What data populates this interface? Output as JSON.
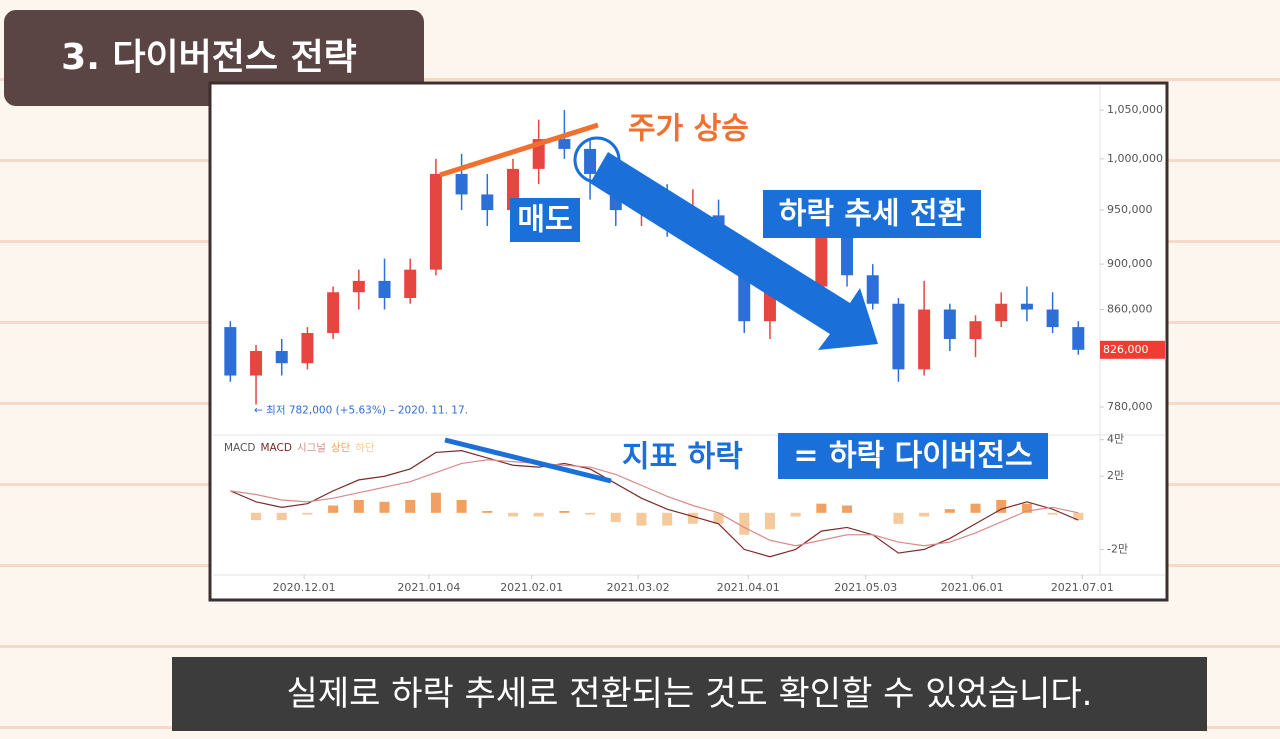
{
  "title": "3. 다이버전스 전략",
  "caption": "실제로 하락 추세로 전환되는 것도 확인할 수 있었습니다.",
  "annotations": [
    "주가 상승",
    "매도",
    "하락 추세 전환",
    "지표 하락",
    "= 하락 다이버전스"
  ],
  "chart_data": [
    {
      "type": "candlestick",
      "x": [
        "2020.11.09",
        "2020.11.16",
        "2020.11.23",
        "2020.11.30",
        "2020.12.07",
        "2020.12.14",
        "2020.12.21",
        "2020.12.28",
        "2021.01.04",
        "2021.01.11",
        "2021.01.18",
        "2021.01.25",
        "2021.02.01",
        "2021.02.08",
        "2021.02.15",
        "2021.02.22",
        "2021.03.01",
        "2021.03.08",
        "2021.03.15",
        "2021.03.22",
        "2021.03.29",
        "2021.04.05",
        "2021.04.12",
        "2021.04.19",
        "2021.04.26",
        "2021.05.03",
        "2021.05.10",
        "2021.05.17",
        "2021.05.24",
        "2021.05.31",
        "2021.06.07",
        "2021.06.14",
        "2021.06.21",
        "2021.06.28"
      ],
      "open": [
        845000,
        805000,
        825000,
        815000,
        840000,
        875000,
        885000,
        870000,
        895000,
        985000,
        965000,
        950000,
        990000,
        1020000,
        1010000,
        985000,
        950000,
        960000,
        940000,
        945000,
        915000,
        850000,
        875000,
        880000,
        930000,
        890000,
        865000,
        810000,
        860000,
        835000,
        850000,
        865000,
        860000,
        845000
      ],
      "high": [
        850000,
        830000,
        835000,
        845000,
        880000,
        895000,
        905000,
        905000,
        1000000,
        1005000,
        985000,
        1000000,
        1040000,
        1050000,
        1020000,
        995000,
        975000,
        975000,
        970000,
        960000,
        920000,
        885000,
        895000,
        945000,
        935000,
        900000,
        870000,
        885000,
        865000,
        855000,
        875000,
        880000,
        875000,
        850000
      ],
      "low": [
        800000,
        782000,
        805000,
        810000,
        835000,
        860000,
        860000,
        865000,
        890000,
        950000,
        935000,
        945000,
        975000,
        1000000,
        960000,
        935000,
        935000,
        925000,
        930000,
        905000,
        840000,
        835000,
        860000,
        875000,
        880000,
        860000,
        800000,
        805000,
        825000,
        820000,
        845000,
        850000,
        840000,
        822000
      ],
      "close": [
        805000,
        825000,
        815000,
        840000,
        875000,
        885000,
        870000,
        895000,
        985000,
        965000,
        950000,
        990000,
        1020000,
        1010000,
        985000,
        950000,
        960000,
        940000,
        945000,
        915000,
        850000,
        875000,
        880000,
        930000,
        890000,
        865000,
        810000,
        860000,
        835000,
        850000,
        865000,
        860000,
        845000,
        826000
      ],
      "up_color": "#e5463f",
      "down_color": "#2d6fd6",
      "xlim": [
        "2020.11.07",
        "2021.07.05"
      ],
      "xticks": [
        "2020.12.01",
        "2021.01.04",
        "2021.02.01",
        "2021.03.02",
        "2021.04.01",
        "2021.05.03",
        "2021.06.01",
        "2021.07.01"
      ],
      "ylim": [
        760000,
        1066000
      ],
      "log_scale": true,
      "yticks": [
        {
          "value": 780000,
          "label": "780,000"
        },
        {
          "value": 860000,
          "label": "860,000"
        },
        {
          "value": 900000,
          "label": "900,000"
        },
        {
          "value": 950000,
          "label": "950,000"
        },
        {
          "value": 1000000,
          "label": "1,000,000"
        },
        {
          "value": 1050000,
          "label": "1,050,000"
        }
      ],
      "low_note": "← 최저 782,000 (+5.63%) – 2020. 11. 17.",
      "price_marker": {
        "value": 826000,
        "label": "826,000",
        "color": "#f03c32"
      }
    },
    {
      "type": "macd",
      "legend_title": "MACD",
      "x": [
        "2020.11.09",
        "2020.11.16",
        "2020.11.23",
        "2020.11.30",
        "2020.12.07",
        "2020.12.14",
        "2020.12.21",
        "2020.12.28",
        "2021.01.04",
        "2021.01.11",
        "2021.01.18",
        "2021.01.25",
        "2021.02.01",
        "2021.02.08",
        "2021.02.15",
        "2021.02.22",
        "2021.03.01",
        "2021.03.08",
        "2021.03.15",
        "2021.03.22",
        "2021.03.29",
        "2021.04.05",
        "2021.04.12",
        "2021.04.19",
        "2021.04.26",
        "2021.05.03",
        "2021.05.10",
        "2021.05.17",
        "2021.05.24",
        "2021.05.31",
        "2021.06.07",
        "2021.06.14",
        "2021.06.21",
        "2021.06.28"
      ],
      "xlim": [
        "2020.11.07",
        "2021.07.05"
      ],
      "ylim": [
        -34000,
        42000
      ],
      "yticks": [
        {
          "value": 40000,
          "label": "4만"
        },
        {
          "value": 20000,
          "label": "2만"
        },
        {
          "value": -20000,
          "label": "-2만"
        }
      ],
      "series": [
        {
          "name": "MACD",
          "kind": "line",
          "color": "#7a2a2a",
          "values": [
            12000,
            6000,
            3000,
            5000,
            12000,
            18000,
            20000,
            24000,
            33000,
            34000,
            30000,
            26000,
            25000,
            27000,
            24000,
            16000,
            8000,
            2000,
            -2000,
            -6000,
            -20000,
            -24000,
            -20000,
            -10000,
            -8000,
            -12000,
            -22000,
            -20000,
            -14000,
            -6000,
            2000,
            6000,
            2000,
            -4000
          ]
        },
        {
          "name": "시그널",
          "kind": "line",
          "color": "#d98b8b",
          "values": [
            12000,
            10000,
            7000,
            6000,
            8000,
            11000,
            14000,
            17000,
            22000,
            27000,
            29000,
            28000,
            27000,
            26000,
            25000,
            21000,
            15000,
            9000,
            4000,
            0,
            -8000,
            -15000,
            -18000,
            -15000,
            -12000,
            -12000,
            -16000,
            -18000,
            -16000,
            -11000,
            -5000,
            1000,
            3000,
            0
          ]
        },
        {
          "name": "상단",
          "kind": "bar",
          "color": "#f0a060",
          "values": [
            null,
            null,
            null,
            null,
            4000,
            7000,
            6000,
            7000,
            11000,
            7000,
            1000,
            null,
            null,
            1000,
            null,
            null,
            null,
            null,
            null,
            null,
            null,
            null,
            null,
            5000,
            4000,
            null,
            null,
            null,
            2000,
            5000,
            7000,
            5000,
            null,
            null
          ]
        },
        {
          "name": "하단",
          "kind": "bar",
          "color": "#f6c99c",
          "values": [
            null,
            -4000,
            -4000,
            -1000,
            null,
            null,
            null,
            null,
            null,
            null,
            null,
            -2000,
            -2000,
            null,
            -1000,
            -5000,
            -7000,
            -7000,
            -6000,
            -6000,
            -12000,
            -9000,
            -2000,
            null,
            null,
            null,
            -6000,
            -2000,
            null,
            null,
            null,
            null,
            -1000,
            -4000
          ]
        }
      ]
    }
  ]
}
